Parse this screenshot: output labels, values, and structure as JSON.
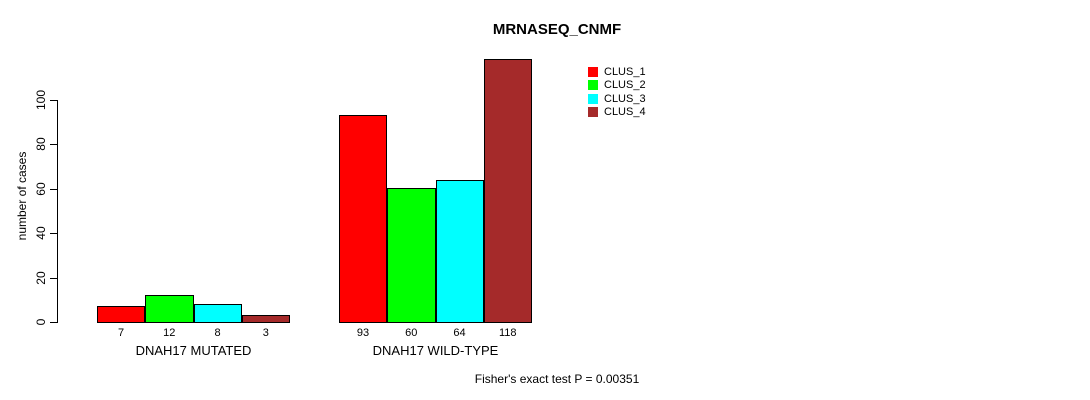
{
  "chart_data": {
    "type": "bar",
    "title": "MRNASEQ_CNMF",
    "ylabel": "number of cases",
    "xlabel": "",
    "categories": [
      "DNAH17 MUTATED",
      "DNAH17 WILD-TYPE"
    ],
    "series": [
      {
        "name": "CLUS_1",
        "color": "#FF0000",
        "values": [
          7,
          93
        ]
      },
      {
        "name": "CLUS_2",
        "color": "#00FF00",
        "values": [
          12,
          60
        ]
      },
      {
        "name": "CLUS_3",
        "color": "#00FFFF",
        "values": [
          8,
          64
        ]
      },
      {
        "name": "CLUS_4",
        "color": "#A52A2A",
        "values": [
          3,
          118
        ]
      }
    ],
    "bar_value_labels": [
      [
        "7",
        "12",
        "8",
        "3"
      ],
      [
        "93",
        "60",
        "64",
        "118"
      ]
    ],
    "yticks": [
      0,
      20,
      40,
      60,
      80,
      100
    ],
    "ylim": [
      0,
      118
    ],
    "grid": false,
    "legend_position": "top-right",
    "annotation": "Fisher's exact test P = 0.00351"
  }
}
